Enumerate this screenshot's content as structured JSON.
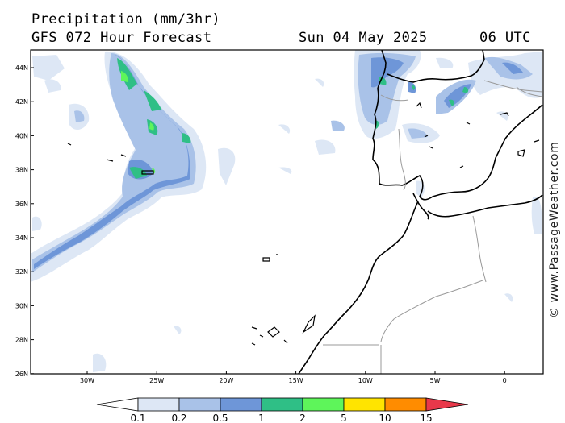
{
  "header": {
    "title": "Precipitation (mm/3hr)",
    "subtitle": "GFS 072 Hour Forecast",
    "date": "Sun 04 May 2025",
    "time": "06 UTC"
  },
  "map": {
    "lat_labels": [
      "44N",
      "42N",
      "40N",
      "38N",
      "36N",
      "34N",
      "32N",
      "30N",
      "28N",
      "26N"
    ],
    "lon_labels": [
      "30W",
      "25W",
      "20W",
      "15W",
      "10W",
      "5W",
      "0"
    ],
    "land_color": "#ffffff",
    "coast_color": "#000000",
    "border_color": "#9a9a9a"
  },
  "colorbar": {
    "labels": [
      "0.1",
      "0.2",
      "0.5",
      "1",
      "2",
      "5",
      "10",
      "15"
    ],
    "colors": [
      "#ffffff",
      "#dde7f5",
      "#a9c2e8",
      "#6e96d8",
      "#2fbf86",
      "#5ef55a",
      "#ffe400",
      "#ff8c00",
      "#e8384a"
    ]
  },
  "credit": "© www.PassageWeather.com"
}
